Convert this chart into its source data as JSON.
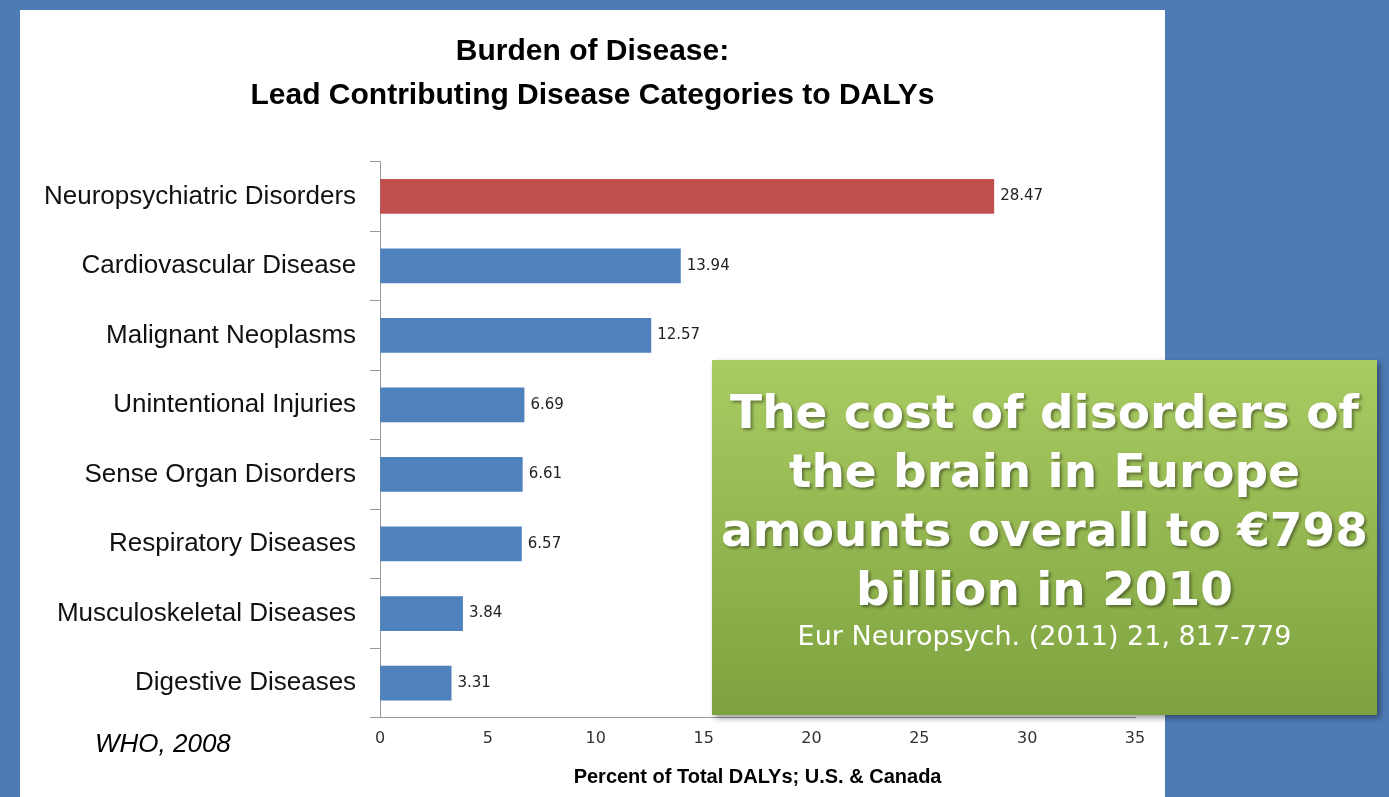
{
  "chart_data": {
    "type": "bar",
    "orientation": "horizontal",
    "title": "Burden of Disease:",
    "subtitle": "Lead Contributing Disease Categories to DALYs",
    "xlabel": "Percent of Total DALYs; U.S. & Canada",
    "categories": [
      "Neuropsychiatric Disorders",
      "Cardiovascular Disease",
      "Malignant Neoplasms",
      "Unintentional Injuries",
      "Sense Organ Disorders",
      "Respiratory Diseases",
      "Musculoskeletal Diseases",
      "Digestive Diseases"
    ],
    "values": [
      28.47,
      13.94,
      12.57,
      6.69,
      6.61,
      6.57,
      3.84,
      3.31
    ],
    "colors": [
      "#c0504d",
      "#4f81bd",
      "#4f81bd",
      "#4f81bd",
      "#4f81bd",
      "#4f81bd",
      "#4f81bd",
      "#4f81bd"
    ],
    "xlim": [
      0,
      35
    ],
    "xticks": [
      0,
      5,
      10,
      15,
      20,
      25,
      30,
      35
    ],
    "data_labels": true,
    "annotations": [
      "WHO, 2008",
      "The cost of disorders of the brain in Europe amounts overall to €798 billion in 2010",
      "Eur Neuropsych. (2011) 21, 817-779"
    ]
  }
}
